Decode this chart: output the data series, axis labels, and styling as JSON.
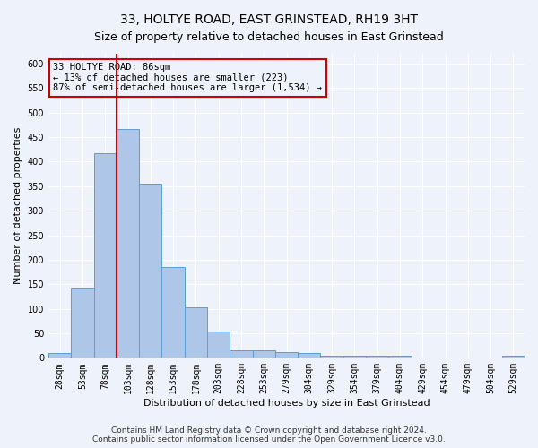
{
  "title": "33, HOLTYE ROAD, EAST GRINSTEAD, RH19 3HT",
  "subtitle": "Size of property relative to detached houses in East Grinstead",
  "xlabel": "Distribution of detached houses by size in East Grinstead",
  "ylabel": "Number of detached properties",
  "categories": [
    "28sqm",
    "53sqm",
    "78sqm",
    "103sqm",
    "128sqm",
    "153sqm",
    "178sqm",
    "203sqm",
    "228sqm",
    "253sqm",
    "279sqm",
    "304sqm",
    "329sqm",
    "354sqm",
    "379sqm",
    "404sqm",
    "429sqm",
    "454sqm",
    "479sqm",
    "504sqm",
    "529sqm"
  ],
  "values": [
    10,
    143,
    417,
    467,
    355,
    185,
    103,
    54,
    16,
    15,
    12,
    10,
    5,
    5,
    5,
    5,
    0,
    0,
    0,
    0,
    5
  ],
  "bar_color": "#aec6e8",
  "bar_edge_color": "#5a9fd4",
  "vline_color": "#cc0000",
  "annotation_line1": "33 HOLTYE ROAD: 86sqm",
  "annotation_line2": "← 13% of detached houses are smaller (223)",
  "annotation_line3": "87% of semi-detached houses are larger (1,534) →",
  "annotation_box_color": "#cc0000",
  "ylim": [
    0,
    620
  ],
  "yticks": [
    0,
    50,
    100,
    150,
    200,
    250,
    300,
    350,
    400,
    450,
    500,
    550,
    600
  ],
  "footer_line1": "Contains HM Land Registry data © Crown copyright and database right 2024.",
  "footer_line2": "Contains public sector information licensed under the Open Government Licence v3.0.",
  "background_color": "#eef2fb",
  "grid_color": "#ffffff",
  "title_fontsize": 10,
  "subtitle_fontsize": 9,
  "axis_label_fontsize": 8,
  "tick_fontsize": 7,
  "annotation_fontsize": 7.5,
  "footer_fontsize": 6.5
}
